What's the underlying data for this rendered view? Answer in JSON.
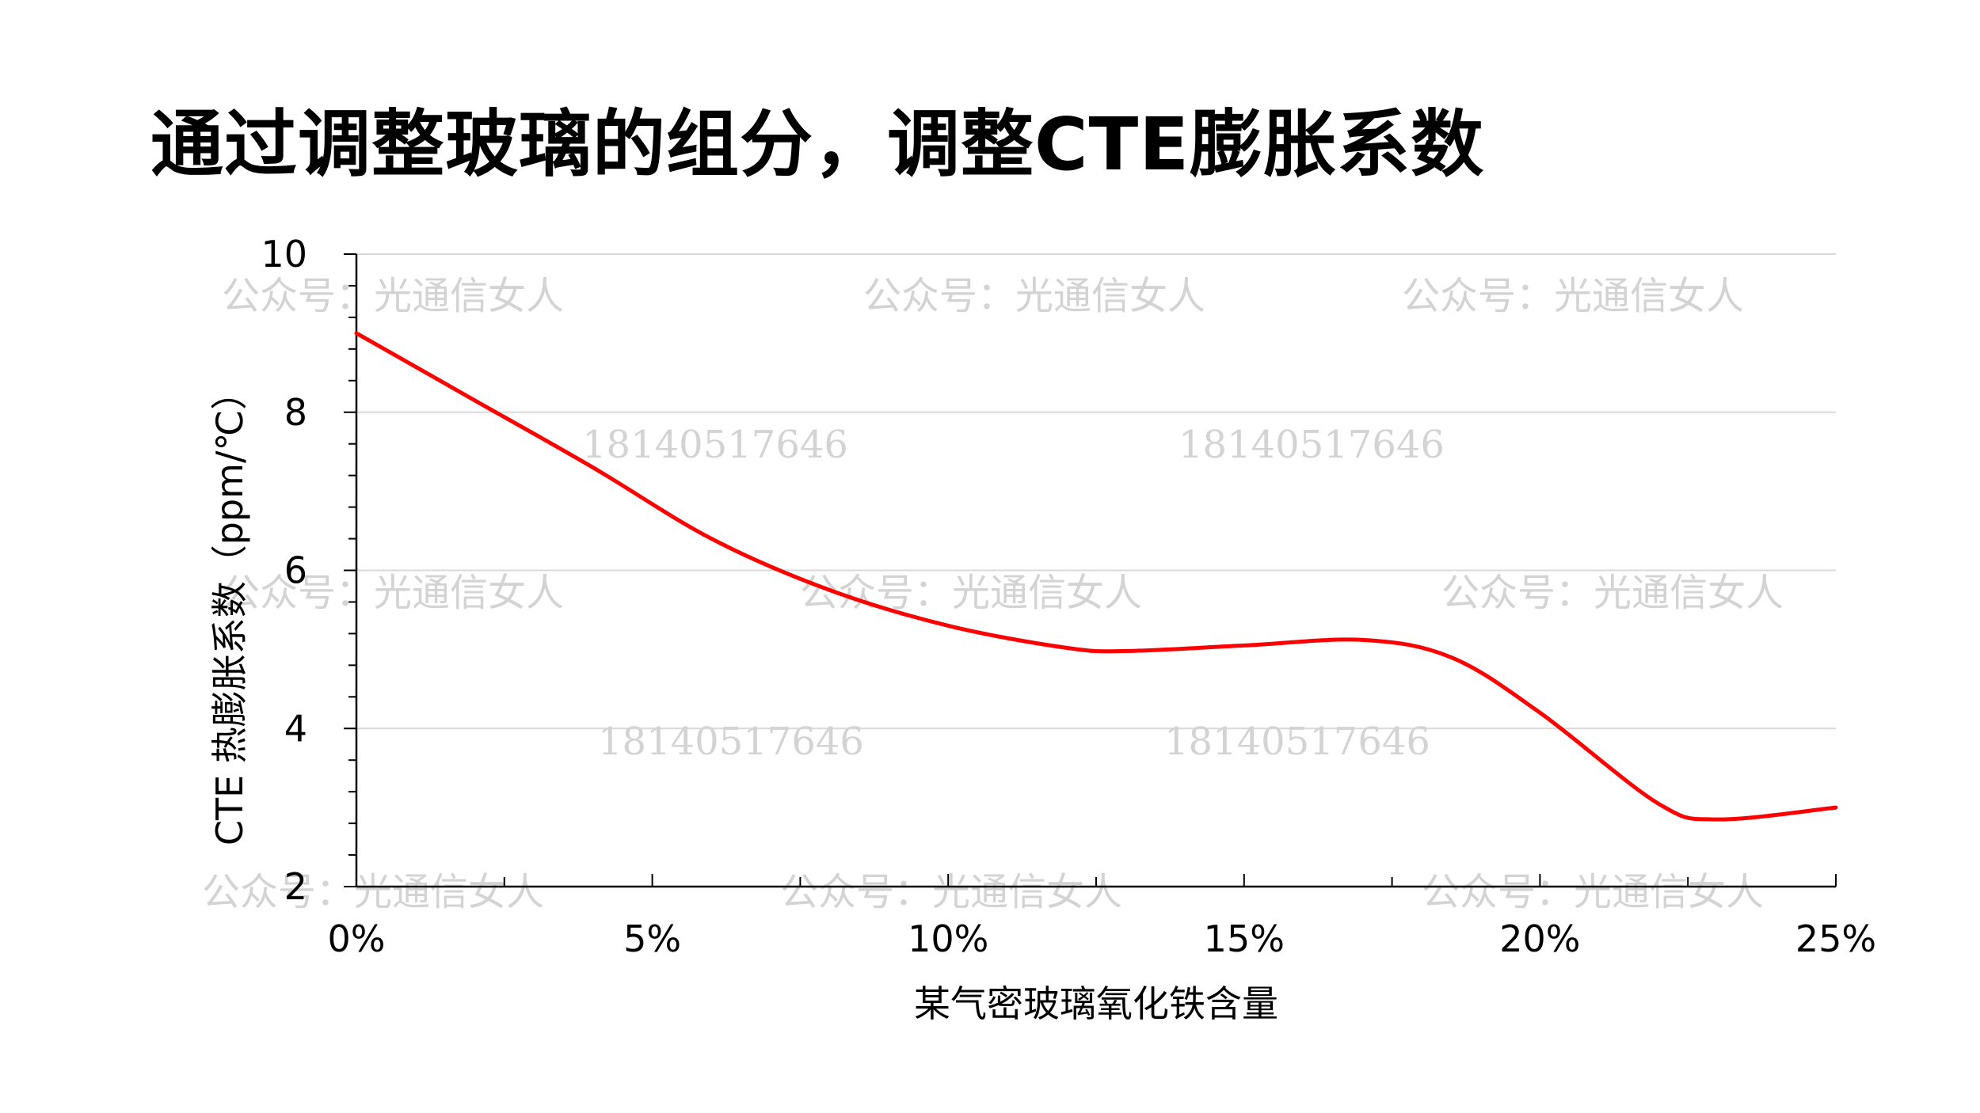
{
  "slide": {
    "title": "通过调整玻璃的组分，调整CTE膨胀系数"
  },
  "watermark": {
    "account": "公众号：光通信女人",
    "phone": "18140517646"
  },
  "colors": {
    "line": "#ff0000",
    "grid": "#d9d9d9",
    "axis": "#000000",
    "watermark": "#d3d3d3"
  },
  "chart_data": {
    "type": "line",
    "title": "",
    "xlabel": "某气密玻璃氧化铁含量",
    "ylabel": "CTE 热膨胀系数（ppm/℃）",
    "xlim": [
      0,
      25
    ],
    "ylim": [
      2,
      10
    ],
    "x_ticks": [
      0,
      5,
      10,
      15,
      20,
      25
    ],
    "x_tick_labels": [
      "0%",
      "5%",
      "10%",
      "15%",
      "20%",
      "25%"
    ],
    "y_ticks": [
      2,
      4,
      6,
      8,
      10
    ],
    "y_tick_labels": [
      "2",
      "4",
      "6",
      "8",
      "10"
    ],
    "grid": "horizontal",
    "legend": "none",
    "series": [
      {
        "color": "#ff0000",
        "smooth": true,
        "x": [
          0,
          2,
          4,
          6,
          8,
          10,
          12,
          13,
          15,
          17,
          18.5,
          20,
          22,
          23,
          25
        ],
        "y": [
          9.0,
          8.15,
          7.3,
          6.4,
          5.75,
          5.3,
          5.02,
          4.98,
          5.05,
          5.12,
          4.9,
          4.2,
          3.05,
          2.85,
          3.0
        ]
      }
    ]
  }
}
